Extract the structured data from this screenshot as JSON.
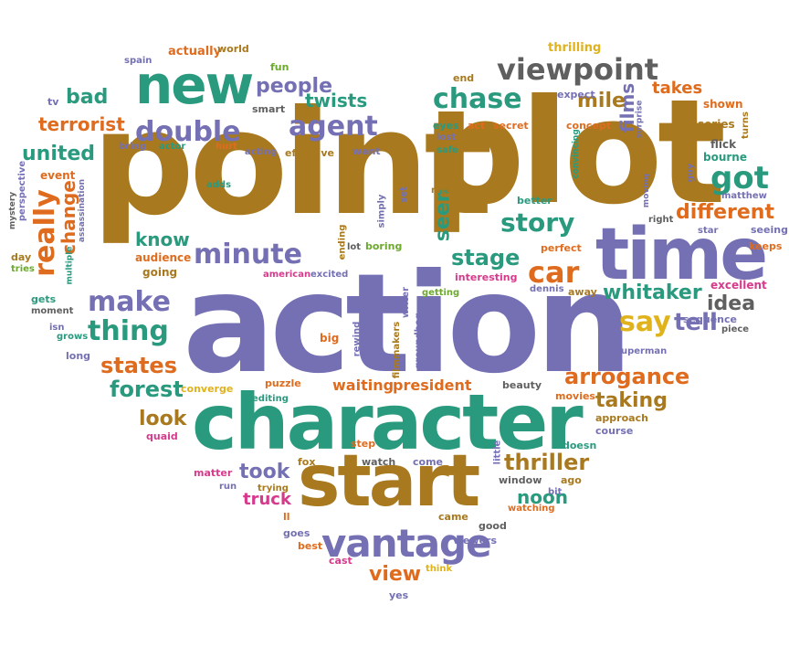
{
  "palette": {
    "brown": "#a8791e",
    "purple": "#7470b3",
    "teal": "#2a9a7e",
    "gray": "#5f5f5f",
    "orange": "#df6c1e",
    "green": "#6da82f",
    "magenta": "#d63a8c",
    "blue": "#2f6fa8",
    "yellow": "#e0b21b"
  },
  "words": [
    {
      "text": "point",
      "color": "brown"
    },
    {
      "text": "plot",
      "color": "brown"
    },
    {
      "text": "action",
      "color": "purple"
    },
    {
      "text": "character",
      "color": "teal"
    },
    {
      "text": "start",
      "color": "brown"
    },
    {
      "text": "time",
      "color": "purple"
    },
    {
      "text": "new",
      "color": "teal"
    },
    {
      "text": "vantage",
      "color": "purple"
    },
    {
      "text": "viewpoint",
      "color": "gray"
    },
    {
      "text": "double",
      "color": "purple"
    },
    {
      "text": "agent",
      "color": "purple"
    },
    {
      "text": "chase",
      "color": "teal"
    },
    {
      "text": "got",
      "color": "teal"
    },
    {
      "text": "minute",
      "color": "purple"
    },
    {
      "text": "story",
      "color": "teal"
    },
    {
      "text": "car",
      "color": "orange"
    },
    {
      "text": "make",
      "color": "purple"
    },
    {
      "text": "thing",
      "color": "teal"
    },
    {
      "text": "really",
      "color": "orange"
    },
    {
      "text": "people",
      "color": "purple"
    },
    {
      "text": "different",
      "color": "orange"
    },
    {
      "text": "stage",
      "color": "teal"
    },
    {
      "text": "say",
      "color": "yellow"
    },
    {
      "text": "whitaker",
      "color": "teal"
    },
    {
      "text": "arrogance",
      "color": "orange"
    },
    {
      "text": "thriller",
      "color": "brown"
    },
    {
      "text": "taking",
      "color": "brown"
    },
    {
      "text": "took",
      "color": "purple"
    },
    {
      "text": "states",
      "color": "orange"
    },
    {
      "text": "forest",
      "color": "teal"
    },
    {
      "text": "view",
      "color": "orange"
    },
    {
      "text": "united",
      "color": "teal"
    },
    {
      "text": "terrorist",
      "color": "orange"
    },
    {
      "text": "bad",
      "color": "teal"
    },
    {
      "text": "twists",
      "color": "teal"
    },
    {
      "text": "seen",
      "color": "teal"
    },
    {
      "text": "tell",
      "color": "purple"
    },
    {
      "text": "idea",
      "color": "gray"
    },
    {
      "text": "mile",
      "color": "brown"
    },
    {
      "text": "know",
      "color": "teal"
    },
    {
      "text": "look",
      "color": "brown"
    },
    {
      "text": "change",
      "color": "orange"
    },
    {
      "text": "noon",
      "color": "teal"
    },
    {
      "text": "truck",
      "color": "magenta"
    },
    {
      "text": "films",
      "color": "purple"
    },
    {
      "text": "takes",
      "color": "orange"
    },
    {
      "text": "waiting",
      "color": "orange"
    },
    {
      "text": "president",
      "color": "orange"
    },
    {
      "text": "thrilling",
      "color": "yellow"
    },
    {
      "text": "end",
      "color": "brown"
    },
    {
      "text": "expect",
      "color": "purple"
    },
    {
      "text": "shown",
      "color": "orange"
    },
    {
      "text": "series",
      "color": "brown"
    },
    {
      "text": "turns",
      "color": "brown"
    },
    {
      "text": "flick",
      "color": "gray"
    },
    {
      "text": "bourne",
      "color": "teal"
    },
    {
      "text": "guy",
      "color": "purple"
    },
    {
      "text": "matthew",
      "color": "purple"
    },
    {
      "text": "seeing",
      "color": "purple"
    },
    {
      "text": "keeps",
      "color": "orange"
    },
    {
      "text": "excellent",
      "color": "magenta"
    },
    {
      "text": "piece",
      "color": "gray"
    },
    {
      "text": "sequence",
      "color": "purple"
    },
    {
      "text": "superman",
      "color": "purple"
    },
    {
      "text": "star",
      "color": "purple"
    },
    {
      "text": "right",
      "color": "gray"
    },
    {
      "text": "moving",
      "color": "purple"
    },
    {
      "text": "perfect",
      "color": "orange"
    },
    {
      "text": "better",
      "color": "teal"
    },
    {
      "text": "dennis",
      "color": "purple"
    },
    {
      "text": "away",
      "color": "brown"
    },
    {
      "text": "interesting",
      "color": "magenta"
    },
    {
      "text": "getting",
      "color": "green"
    },
    {
      "text": "writer",
      "color": "purple"
    },
    {
      "text": "boring",
      "color": "green"
    },
    {
      "text": "lot",
      "color": "gray"
    },
    {
      "text": "ending",
      "color": "brown"
    },
    {
      "text": "simply",
      "color": "purple"
    },
    {
      "text": "set",
      "color": "purple"
    },
    {
      "text": "media",
      "color": "brown"
    },
    {
      "text": "safe",
      "color": "teal"
    },
    {
      "text": "lost",
      "color": "purple"
    },
    {
      "text": "eyes",
      "color": "teal"
    },
    {
      "text": "act",
      "color": "orange"
    },
    {
      "text": "secret",
      "color": "orange"
    },
    {
      "text": "concept",
      "color": "orange"
    },
    {
      "text": "surprise",
      "color": "purple"
    },
    {
      "text": "convincing",
      "color": "teal"
    },
    {
      "text": "actually",
      "color": "orange"
    },
    {
      "text": "world",
      "color": "brown"
    },
    {
      "text": "spain",
      "color": "purple"
    },
    {
      "text": "fun",
      "color": "green"
    },
    {
      "text": "smart",
      "color": "gray"
    },
    {
      "text": "tv",
      "color": "purple"
    },
    {
      "text": "bring",
      "color": "purple"
    },
    {
      "text": "actor",
      "color": "teal"
    },
    {
      "text": "hurt",
      "color": "orange"
    },
    {
      "text": "acting",
      "color": "purple"
    },
    {
      "text": "effective",
      "color": "brown"
    },
    {
      "text": "want",
      "color": "purple"
    },
    {
      "text": "event",
      "color": "orange"
    },
    {
      "text": "adds",
      "color": "teal"
    },
    {
      "text": "assassination",
      "color": "purple"
    },
    {
      "text": "perspective",
      "color": "purple"
    },
    {
      "text": "mystery",
      "color": "gray"
    },
    {
      "text": "day",
      "color": "brown"
    },
    {
      "text": "tries",
      "color": "green"
    },
    {
      "text": "multiple",
      "color": "teal"
    },
    {
      "text": "audience",
      "color": "orange"
    },
    {
      "text": "going",
      "color": "brown"
    },
    {
      "text": "american",
      "color": "magenta"
    },
    {
      "text": "excited",
      "color": "purple"
    },
    {
      "text": "gets",
      "color": "teal"
    },
    {
      "text": "moment",
      "color": "gray"
    },
    {
      "text": "isn",
      "color": "purple"
    },
    {
      "text": "grows",
      "color": "teal"
    },
    {
      "text": "long",
      "color": "purple"
    },
    {
      "text": "big",
      "color": "orange"
    },
    {
      "text": "rewind",
      "color": "purple"
    },
    {
      "text": "filmmakers",
      "color": "brown"
    },
    {
      "text": "groundhog",
      "color": "purple"
    },
    {
      "text": "puzzle",
      "color": "orange"
    },
    {
      "text": "converge",
      "color": "yellow"
    },
    {
      "text": "editing",
      "color": "teal"
    },
    {
      "text": "beauty",
      "color": "gray"
    },
    {
      "text": "movies",
      "color": "orange"
    },
    {
      "text": "approach",
      "color": "brown"
    },
    {
      "text": "course",
      "color": "purple"
    },
    {
      "text": "quaid",
      "color": "magenta"
    },
    {
      "text": "doesn",
      "color": "teal"
    },
    {
      "text": "little",
      "color": "purple"
    },
    {
      "text": "fox",
      "color": "brown"
    },
    {
      "text": "step",
      "color": "orange"
    },
    {
      "text": "watch",
      "color": "gray"
    },
    {
      "text": "come",
      "color": "purple"
    },
    {
      "text": "window",
      "color": "gray"
    },
    {
      "text": "ago",
      "color": "brown"
    },
    {
      "text": "bit",
      "color": "purple"
    },
    {
      "text": "watching",
      "color": "orange"
    },
    {
      "text": "matter",
      "color": "magenta"
    },
    {
      "text": "run",
      "color": "purple"
    },
    {
      "text": "trying",
      "color": "brown"
    },
    {
      "text": "ll",
      "color": "orange"
    },
    {
      "text": "came",
      "color": "brown"
    },
    {
      "text": "good",
      "color": "gray"
    },
    {
      "text": "goes",
      "color": "purple"
    },
    {
      "text": "best",
      "color": "orange"
    },
    {
      "text": "cast",
      "color": "magenta"
    },
    {
      "text": "viewers",
      "color": "purple"
    },
    {
      "text": "think",
      "color": "yellow"
    },
    {
      "text": "yes",
      "color": "purple"
    }
  ]
}
